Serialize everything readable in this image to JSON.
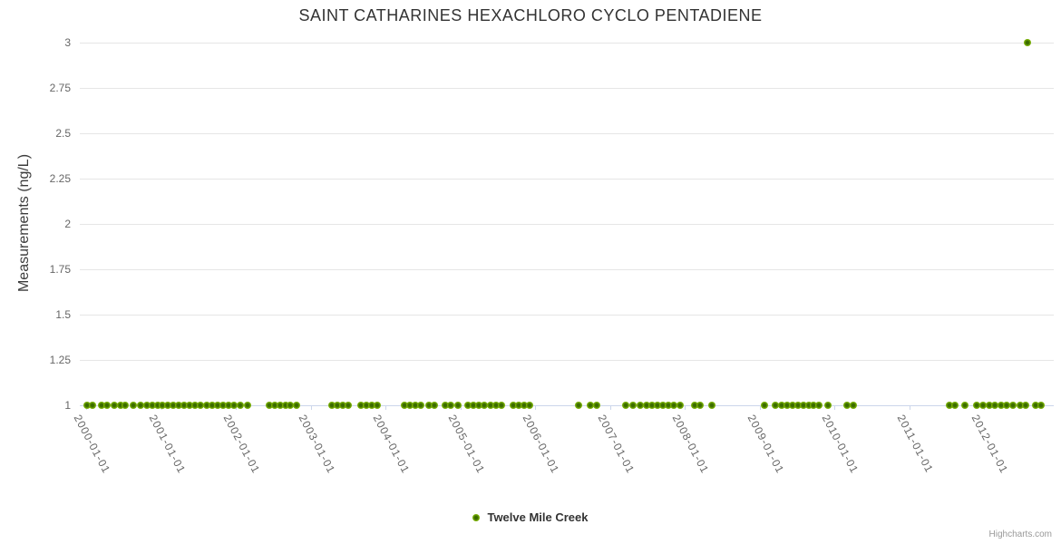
{
  "title": "SAINT CATHARINES HEXACHLORO CYCLO PENTADIENE",
  "credits": {
    "label": "Highcharts.com"
  },
  "legend": {
    "items": [
      {
        "label": "Twelve Mile Creek",
        "marker_color": "#76ad00"
      }
    ]
  },
  "colors": {
    "grid": "#e6e6e6",
    "axis": "#ccd6eb",
    "tick_label": "#666666",
    "title": "#333333",
    "credits": "#999999",
    "marker": "#76ad00"
  },
  "chart_data": {
    "type": "scatter",
    "title": "SAINT CATHARINES HEXACHLORO CYCLO PENTADIENE",
    "xlabel": "",
    "ylabel": "Measurements (ng/L)",
    "ylim": [
      1,
      3
    ],
    "yticks": [
      "1",
      "1.25",
      "1.5",
      "1.75",
      "2",
      "2.25",
      "2.5",
      "2.75",
      "3"
    ],
    "xticks": [
      "2000-01-01",
      "2001-01-01",
      "2002-01-01",
      "2003-01-01",
      "2004-01-01",
      "2005-01-01",
      "2006-01-01",
      "2007-01-01",
      "2008-01-01",
      "2009-01-01",
      "2010-01-01",
      "2011-01-01",
      "2012-01-01"
    ],
    "grid": true,
    "legend_position": "bottom-center",
    "series": [
      {
        "name": "Twelve Mile Creek",
        "color": "#76ad00",
        "color_center": "#3a6a00",
        "color_edge": "#a9d352",
        "points": [
          [
            "2000-01-05",
            1
          ],
          [
            "2000-02-01",
            1
          ],
          [
            "2000-03-15",
            1
          ],
          [
            "2000-04-10",
            1
          ],
          [
            "2000-05-15",
            1
          ],
          [
            "2000-06-15",
            1
          ],
          [
            "2000-07-10",
            1
          ],
          [
            "2000-08-20",
            1
          ],
          [
            "2000-09-25",
            1
          ],
          [
            "2000-10-25",
            1
          ],
          [
            "2000-11-20",
            1
          ],
          [
            "2000-12-15",
            1
          ],
          [
            "2001-01-07",
            1
          ],
          [
            "2001-02-03",
            1
          ],
          [
            "2001-03-01",
            1
          ],
          [
            "2001-03-28",
            1
          ],
          [
            "2001-04-23",
            1
          ],
          [
            "2001-05-20",
            1
          ],
          [
            "2001-06-15",
            1
          ],
          [
            "2001-07-12",
            1
          ],
          [
            "2001-08-12",
            1
          ],
          [
            "2001-09-07",
            1
          ],
          [
            "2001-10-04",
            1
          ],
          [
            "2001-10-30",
            1
          ],
          [
            "2001-11-25",
            1
          ],
          [
            "2001-12-22",
            1
          ],
          [
            "2002-01-22",
            1
          ],
          [
            "2002-02-26",
            1
          ],
          [
            "2002-06-12",
            1
          ],
          [
            "2002-07-08",
            1
          ],
          [
            "2002-08-03",
            1
          ],
          [
            "2002-08-30",
            1
          ],
          [
            "2002-09-25",
            1
          ],
          [
            "2002-10-22",
            1
          ],
          [
            "2003-04-14",
            1
          ],
          [
            "2003-05-11",
            1
          ],
          [
            "2003-06-07",
            1
          ],
          [
            "2003-07-03",
            1
          ],
          [
            "2003-09-03",
            1
          ],
          [
            "2003-09-30",
            1
          ],
          [
            "2003-10-26",
            1
          ],
          [
            "2003-11-22",
            1
          ],
          [
            "2004-04-03",
            1
          ],
          [
            "2004-04-30",
            1
          ],
          [
            "2004-05-26",
            1
          ],
          [
            "2004-06-21",
            1
          ],
          [
            "2004-08-01",
            1
          ],
          [
            "2004-08-27",
            1
          ],
          [
            "2004-10-19",
            1
          ],
          [
            "2004-11-15",
            1
          ],
          [
            "2004-12-21",
            1
          ],
          [
            "2005-02-07",
            1
          ],
          [
            "2005-03-05",
            1
          ],
          [
            "2005-04-01",
            1
          ],
          [
            "2005-04-27",
            1
          ],
          [
            "2005-05-28",
            1
          ],
          [
            "2005-06-24",
            1
          ],
          [
            "2005-07-20",
            1
          ],
          [
            "2005-09-16",
            1
          ],
          [
            "2005-10-13",
            1
          ],
          [
            "2005-11-08",
            1
          ],
          [
            "2005-12-05",
            1
          ],
          [
            "2006-08-01",
            1
          ],
          [
            "2006-09-27",
            1
          ],
          [
            "2006-10-28",
            1
          ],
          [
            "2007-03-19",
            1
          ],
          [
            "2007-04-23",
            1
          ],
          [
            "2007-05-28",
            1
          ],
          [
            "2007-06-28",
            1
          ],
          [
            "2007-07-25",
            1
          ],
          [
            "2007-08-20",
            1
          ],
          [
            "2007-09-16",
            1
          ],
          [
            "2007-10-13",
            1
          ],
          [
            "2007-11-08",
            1
          ],
          [
            "2007-12-09",
            1
          ],
          [
            "2008-02-18",
            1
          ],
          [
            "2008-03-16",
            1
          ],
          [
            "2008-05-13",
            1
          ],
          [
            "2009-01-25",
            1
          ],
          [
            "2009-03-19",
            1
          ],
          [
            "2009-04-19",
            1
          ],
          [
            "2009-05-15",
            1
          ],
          [
            "2009-06-11",
            1
          ],
          [
            "2009-07-07",
            1
          ],
          [
            "2009-08-03",
            1
          ],
          [
            "2009-08-29",
            1
          ],
          [
            "2009-09-20",
            1
          ],
          [
            "2009-10-17",
            1
          ],
          [
            "2009-12-01",
            1
          ],
          [
            "2010-03-03",
            1
          ],
          [
            "2010-04-03",
            1
          ],
          [
            "2011-07-16",
            1
          ],
          [
            "2011-08-11",
            1
          ],
          [
            "2011-09-30",
            1
          ],
          [
            "2011-11-26",
            1
          ],
          [
            "2011-12-27",
            1
          ],
          [
            "2012-01-27",
            1
          ],
          [
            "2012-02-22",
            1
          ],
          [
            "2012-03-25",
            1
          ],
          [
            "2012-04-20",
            1
          ],
          [
            "2012-05-21",
            1
          ],
          [
            "2012-06-26",
            1
          ],
          [
            "2012-07-22",
            1
          ],
          [
            "2012-08-01",
            3
          ],
          [
            "2012-09-10",
            1
          ],
          [
            "2012-10-06",
            1
          ]
        ]
      }
    ]
  }
}
